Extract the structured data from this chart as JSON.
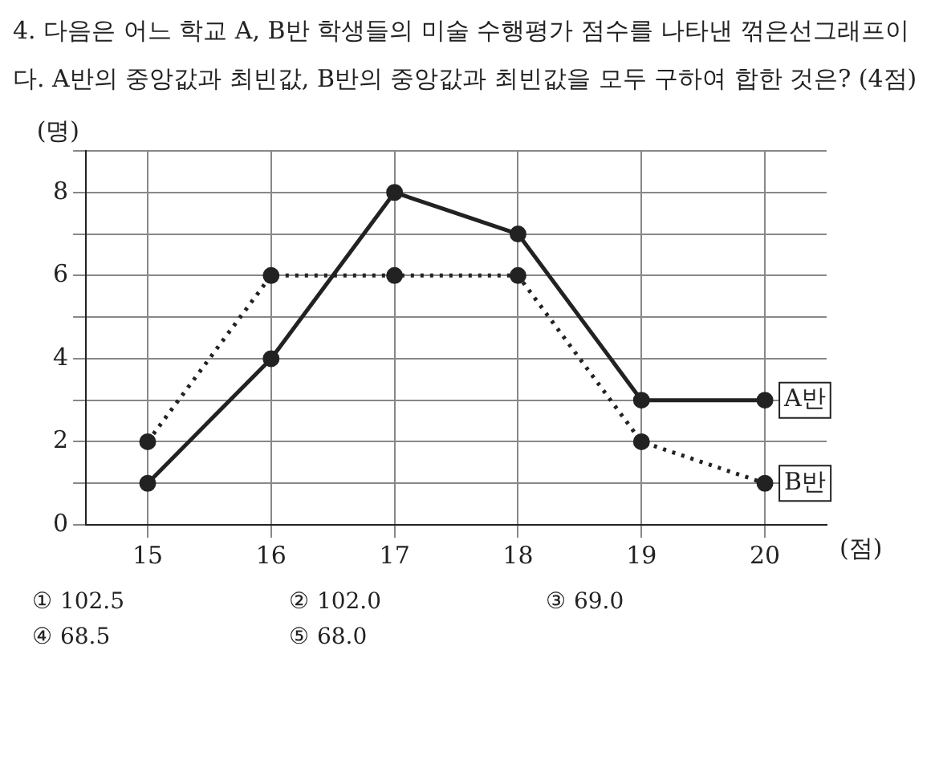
{
  "chart_data": {
    "type": "line",
    "title": "4. 다음은 어느 학교 A, B반 학생들의 미술 수행평가 점수를 나타낸 꺾은선그래프이다. A반의 중앙값과 최빈값, B반의 중앙값과 최빈값을 모두 구하여 합한 것은? (4점)",
    "xlabel": "(점)",
    "ylabel": "(명)",
    "categories": [
      "15",
      "16",
      "17",
      "18",
      "19",
      "20"
    ],
    "series": [
      {
        "name": "A반",
        "color": "#222222",
        "line_style": "solid",
        "values": [
          1,
          4,
          8,
          7,
          3,
          3
        ]
      },
      {
        "name": "B반",
        "color": "#222222",
        "line_style": "dotted",
        "values": [
          2,
          6,
          6,
          6,
          2,
          1
        ]
      }
    ],
    "ylim": [
      0,
      9
    ],
    "yticks": [
      0,
      {
        "value": 1,
        "label": null
      },
      2,
      {
        "value": 3,
        "label": null
      },
      4,
      {
        "value": 5,
        "label": null
      },
      6,
      {
        "value": 7,
        "label": null
      },
      8,
      {
        "value": 9,
        "label": null
      }
    ],
    "grid": true,
    "marker": "circle",
    "legend": false,
    "annotations": [
      "① 102.5",
      "② 102.0",
      "③ 69.0",
      "④ 68.5",
      "⑤ 68.0"
    ]
  }
}
